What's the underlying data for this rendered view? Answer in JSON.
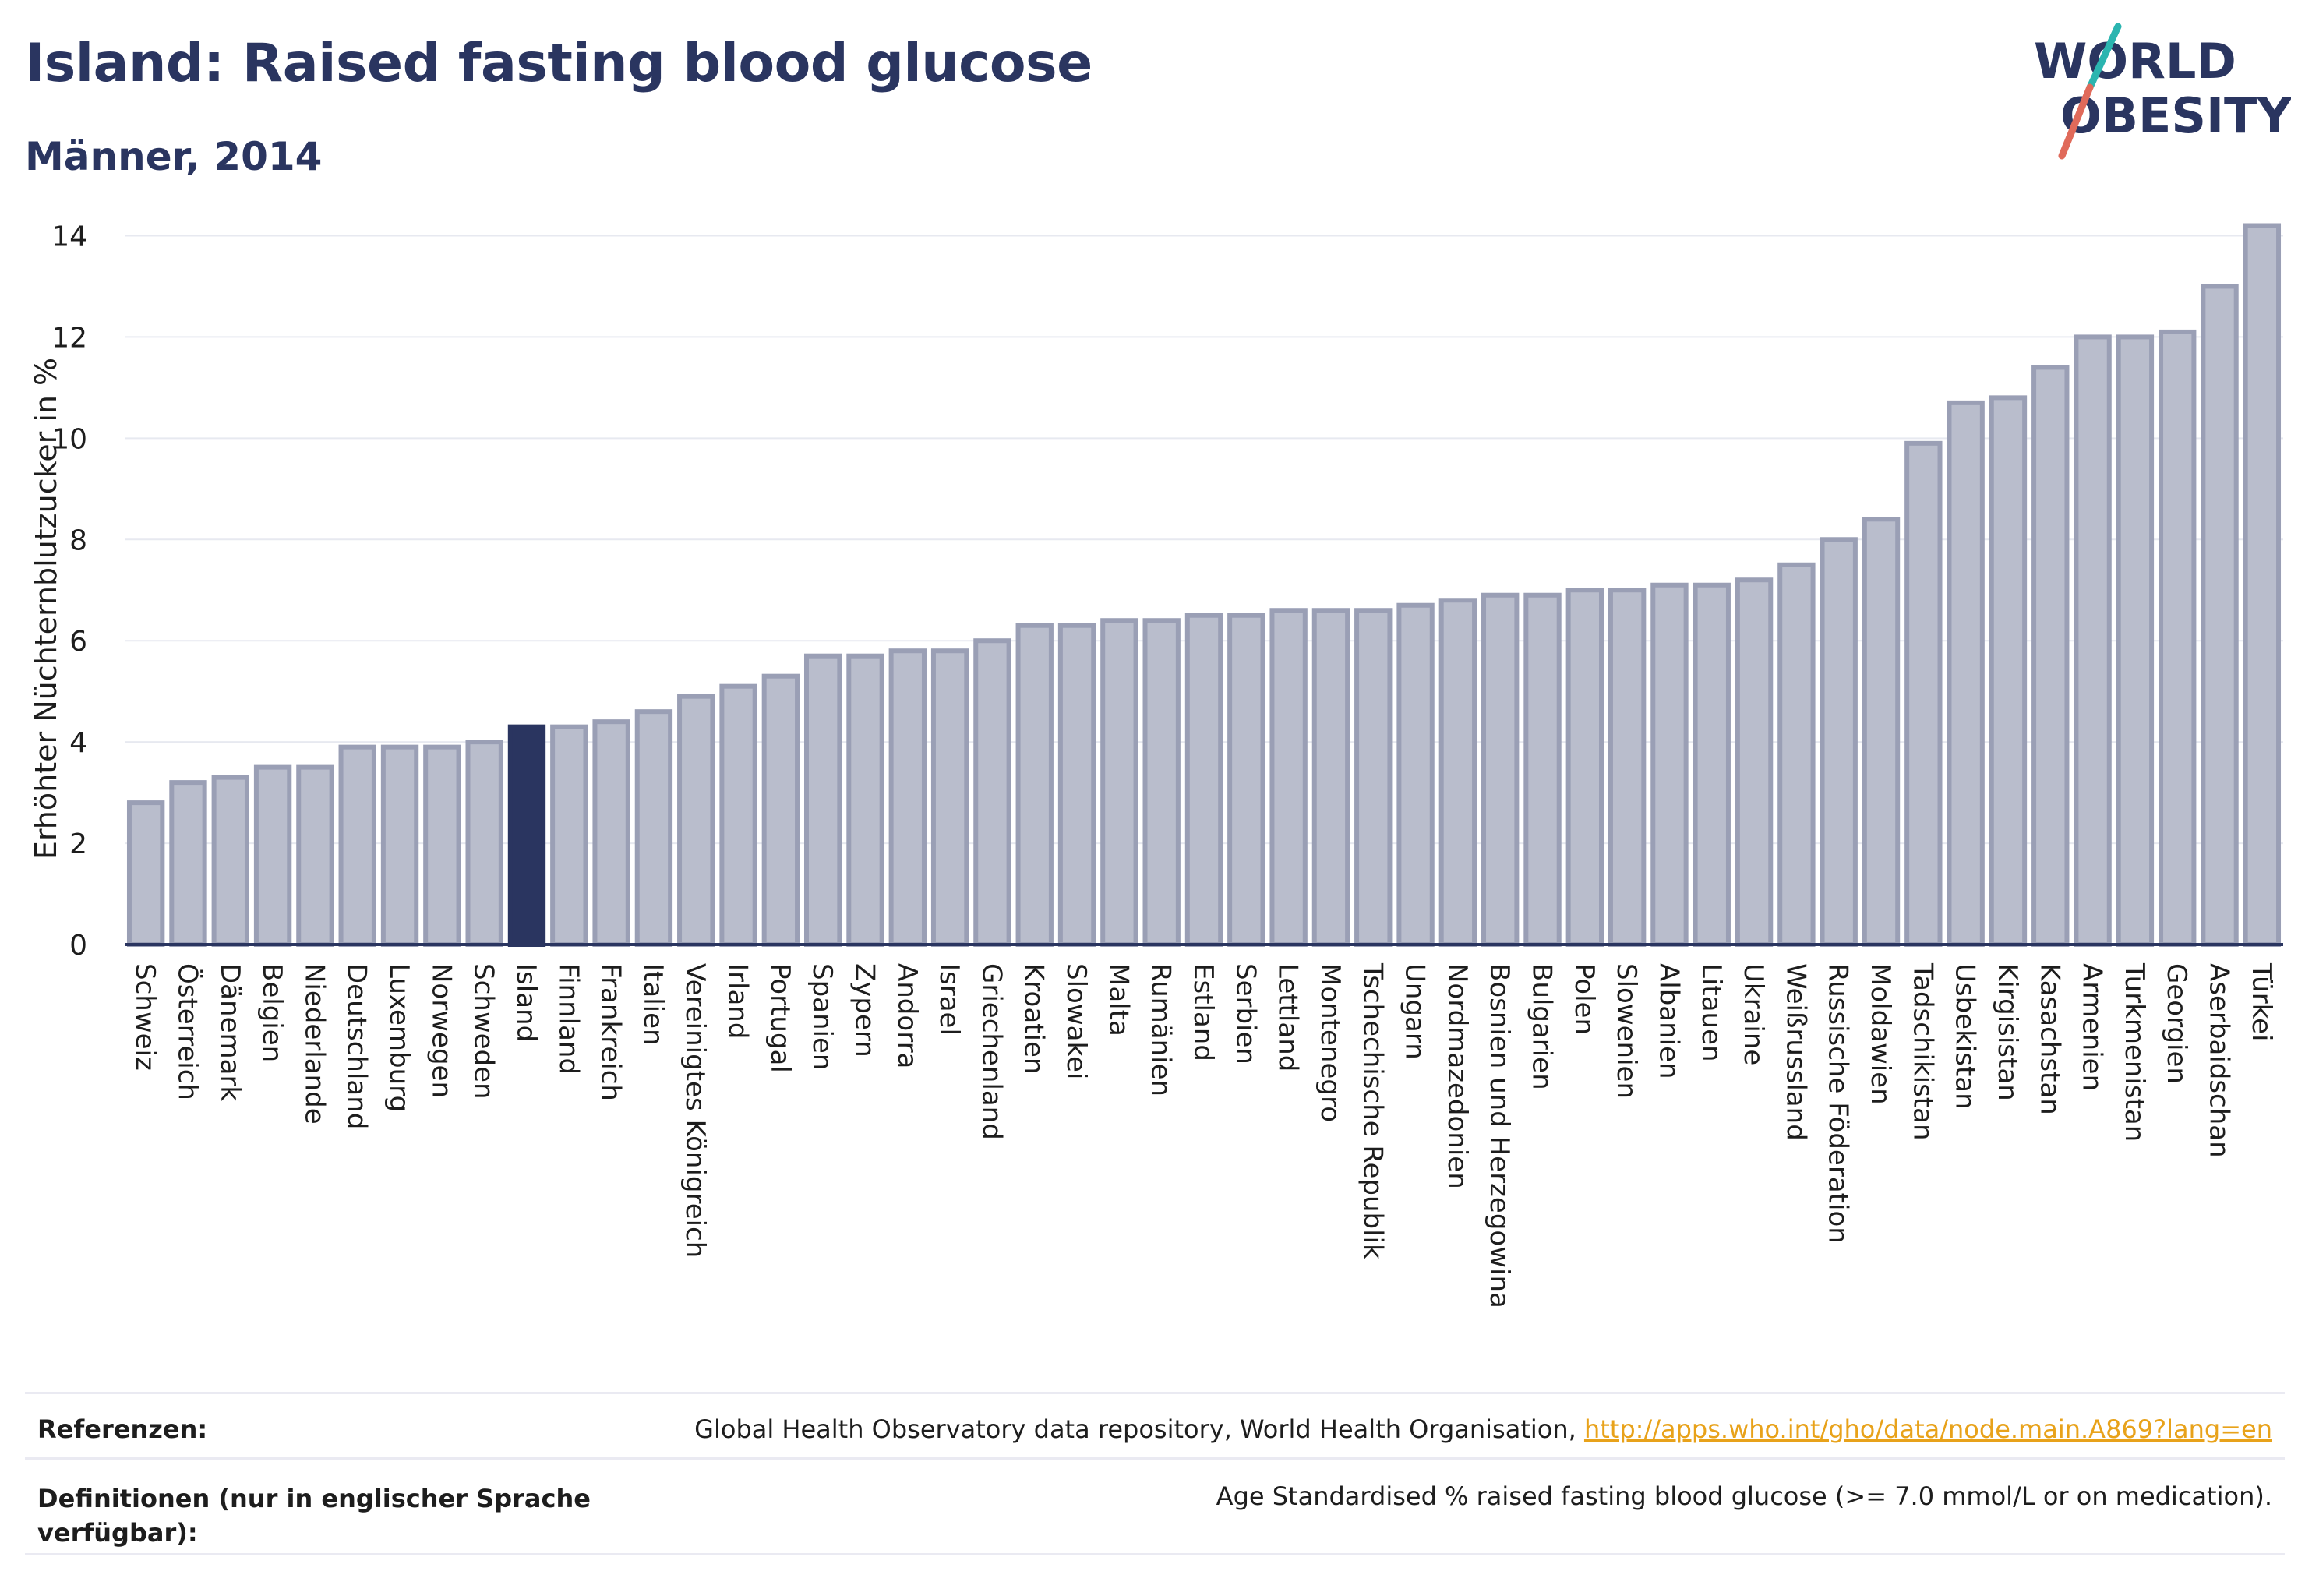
{
  "header": {
    "title": "Island: Raised fasting blood glucose",
    "subtitle": "Männer, 2014"
  },
  "logo": {
    "line1": "WORLD",
    "line2": "OBESITY",
    "accent_teal": "#2bb5b0",
    "accent_red": "#e06a5a",
    "text_color": "#2a3560"
  },
  "chart_data": {
    "type": "bar",
    "ylabel": "Erhöhter Nüchternblutzucker in %",
    "ylim": [
      0,
      14.5
    ],
    "yticks": [
      0,
      2,
      4,
      6,
      8,
      10,
      12,
      14
    ],
    "grid": true,
    "highlight": "Island",
    "colors": {
      "bar": "#b9bdcc",
      "bar_edge": "#9a9fb5",
      "highlight": "#2a3560"
    },
    "categories": [
      "Schweiz",
      "Österreich",
      "Dänemark",
      "Belgien",
      "Niederlande",
      "Deutschland",
      "Luxemburg",
      "Norwegen",
      "Schweden",
      "Island",
      "Finnland",
      "Frankreich",
      "Italien",
      "Vereinigtes Königreich",
      "Irland",
      "Portugal",
      "Spanien",
      "Zypern",
      "Andorra",
      "Israel",
      "Griechenland",
      "Kroatien",
      "Slowakei",
      "Malta",
      "Rumänien",
      "Estland",
      "Serbien",
      "Lettland",
      "Montenegro",
      "Tschechische Republik",
      "Ungarn",
      "Nordmazedonien",
      "Bosnien und Herzegowina",
      "Bulgarien",
      "Polen",
      "Slowenien",
      "Albanien",
      "Litauen",
      "Ukraine",
      "Weißrussland",
      "Russische Föderation",
      "Moldawien",
      "Tadschikistan",
      "Usbekistan",
      "Kirgisistan",
      "Kasachstan",
      "Armenien",
      "Turkmenistan",
      "Georgien",
      "Aserbaidschan",
      "Türkei"
    ],
    "values": [
      2.8,
      3.2,
      3.3,
      3.5,
      3.5,
      3.9,
      3.9,
      3.9,
      4.0,
      4.3,
      4.3,
      4.4,
      4.6,
      4.9,
      5.1,
      5.3,
      5.7,
      5.7,
      5.8,
      5.8,
      6.0,
      6.3,
      6.3,
      6.4,
      6.4,
      6.5,
      6.5,
      6.6,
      6.6,
      6.6,
      6.7,
      6.8,
      6.9,
      6.9,
      7.0,
      7.0,
      7.1,
      7.1,
      7.2,
      7.5,
      8.0,
      8.4,
      9.9,
      10.7,
      10.8,
      11.4,
      12.0,
      12.0,
      12.1,
      13.0,
      14.2
    ]
  },
  "footer": {
    "references_label": "Referenzen:",
    "references_text": "Global Health Observatory data repository, World Health Organisation,",
    "references_link": "http://apps.who.int/gho/data/node.main.A869?lang=en",
    "definitions_label_1": "Definitionen (nur in englischer Sprache",
    "definitions_label_2": "verfügbar):",
    "definitions_text": "Age Standardised % raised fasting blood glucose (>= 7.0 mmol/L or on medication)."
  }
}
